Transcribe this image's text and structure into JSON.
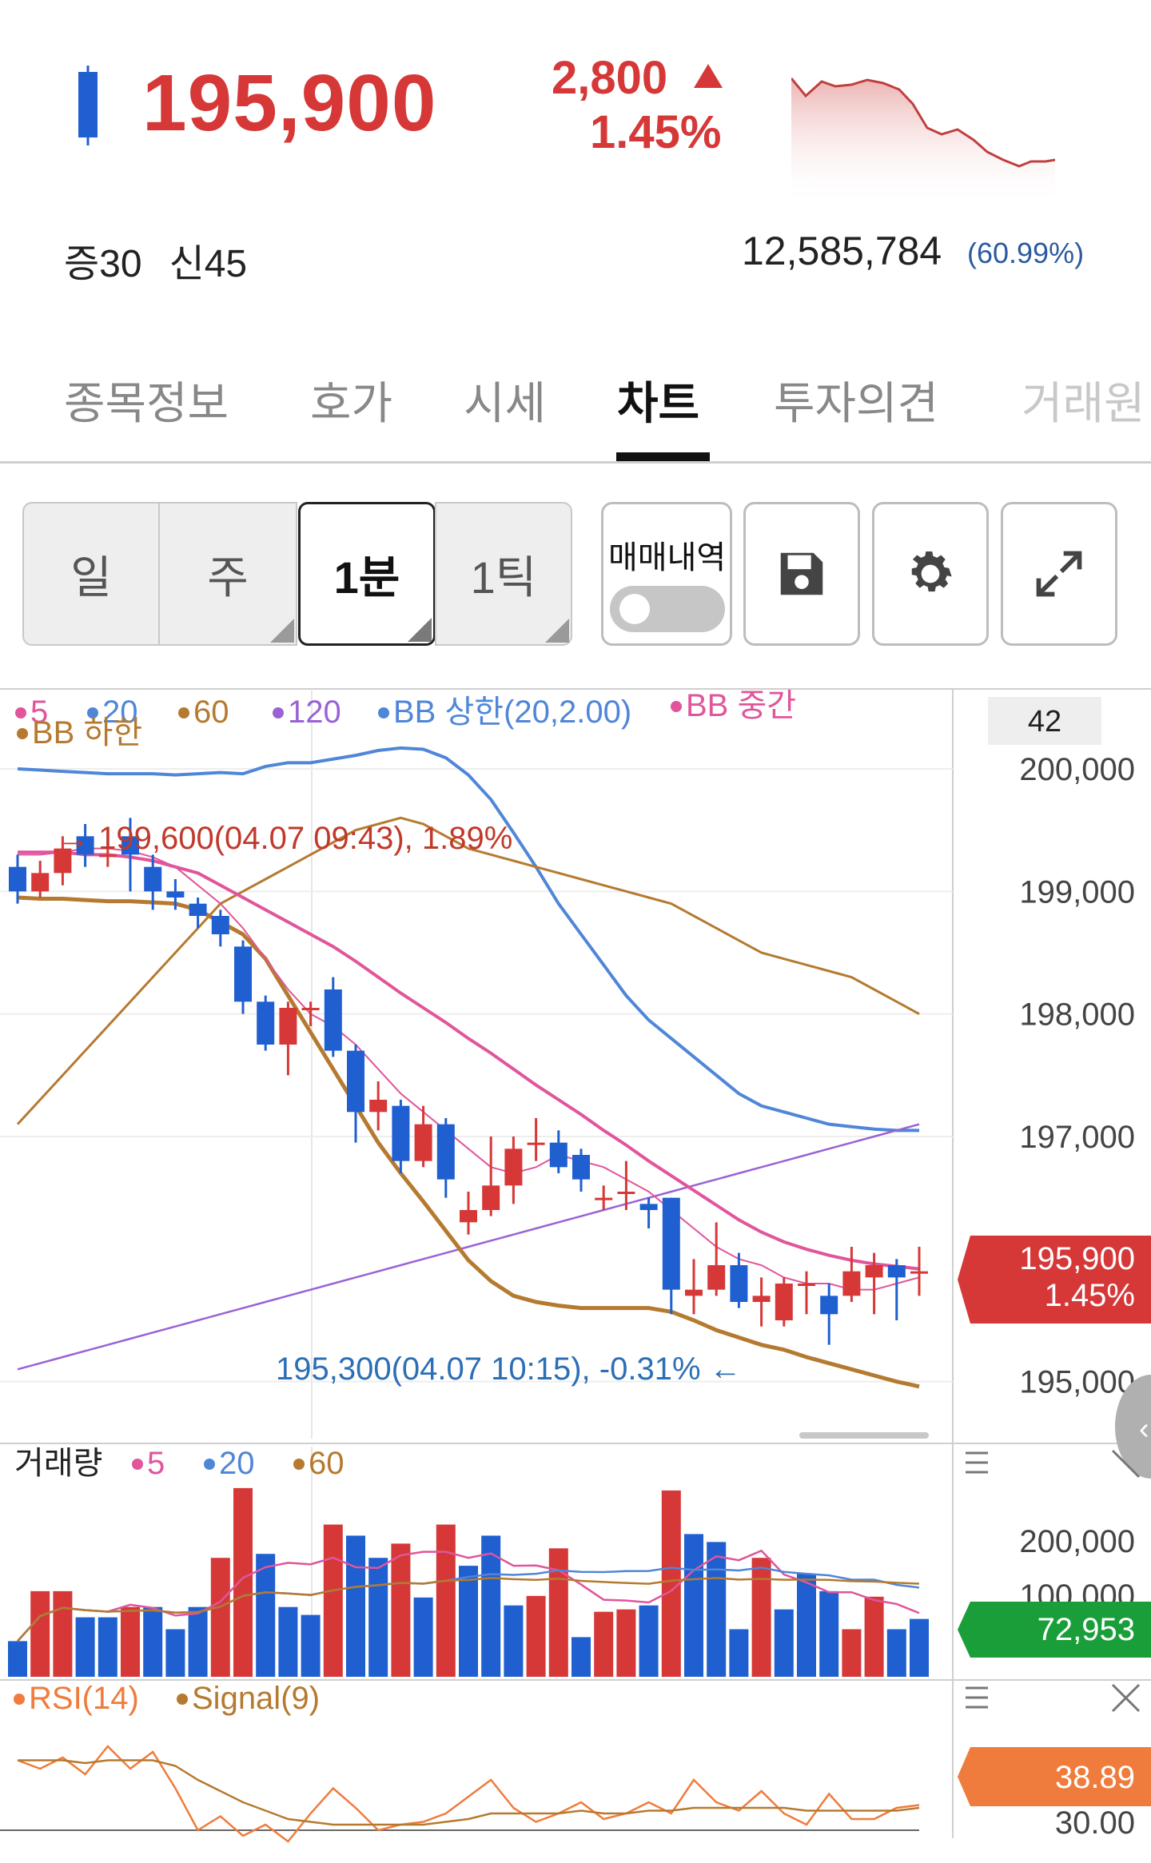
{
  "header": {
    "price": "195,900",
    "change_abs": "2,800",
    "change_pct": "1.45%",
    "badge_margin": "증30",
    "badge_credit": "신45",
    "volume": "12,585,784",
    "volume_ratio": "(60.99%)"
  },
  "colors": {
    "up": "#d63838",
    "down": "#1f5fd0",
    "accent_green": "#1a9e3a",
    "rsi_orange": "#ef7c3c"
  },
  "tabs": [
    {
      "label": "종목정보"
    },
    {
      "label": "호가"
    },
    {
      "label": "시세"
    },
    {
      "label": "차트"
    },
    {
      "label": "투자의견"
    },
    {
      "label": "거래원"
    }
  ],
  "active_tab": "차트",
  "period_buttons": [
    {
      "label": "일"
    },
    {
      "label": "주"
    },
    {
      "label": "1분"
    },
    {
      "label": "1틱"
    }
  ],
  "selected_period": "1분",
  "trade_history": {
    "label": "매매내역",
    "enabled": false
  },
  "tool_icons": [
    "save-icon",
    "gear-icon",
    "expand-icon"
  ],
  "price_chart": {
    "legend": [
      {
        "label": "5",
        "color": "#e0559b"
      },
      {
        "label": "20",
        "color": "#4f86d8"
      },
      {
        "label": "60",
        "color": "#b57a30"
      },
      {
        "label": "120",
        "color": "#9a62d6"
      },
      {
        "label": "BB 상한(20,2.00)",
        "color": "#4f86d8"
      },
      {
        "label": "BB 중간",
        "color": "#e0559b"
      },
      {
        "label": "BB 하한",
        "color": "#b57a30"
      }
    ],
    "zoom_label": "42",
    "y_ticks": [
      "200,000",
      "199,000",
      "198,000",
      "197,000",
      "195,000"
    ],
    "high_annotation": "→ 199,600(04.07 09:43), 1.89%",
    "low_annotation": "195,300(04.07 10:15), -0.31% ←",
    "current_price_tag": "195,900",
    "current_pct_tag": "1.45%"
  },
  "volume_chart": {
    "title": "거래량",
    "legend": [
      {
        "label": "5",
        "color": "#e0559b"
      },
      {
        "label": "20",
        "color": "#4f86d8"
      },
      {
        "label": "60",
        "color": "#b57a30"
      }
    ],
    "y_ticks": [
      "200,000",
      "100,000"
    ],
    "current_tag": "72,953"
  },
  "rsi_chart": {
    "legend": [
      {
        "label": "RSI(14)",
        "color": "#ef7c3c"
      },
      {
        "label": "Signal(9)",
        "color": "#b57a30"
      }
    ],
    "current_tag": "38.89",
    "y_ticks": [
      "30.00"
    ]
  },
  "chart_data": [
    {
      "type": "candlestick",
      "ylim": [
        194600,
        200600
      ],
      "candles": [
        {
          "o": 199000,
          "c": 199200,
          "h": 199300,
          "l": 198900,
          "up": false
        },
        {
          "o": 199000,
          "c": 199150,
          "h": 199250,
          "l": 198950,
          "up": true
        },
        {
          "o": 199150,
          "c": 199350,
          "h": 199450,
          "l": 199050,
          "up": true
        },
        {
          "o": 199450,
          "c": 199300,
          "h": 199550,
          "l": 199200,
          "up": false
        },
        {
          "o": 199300,
          "c": 199300,
          "h": 199500,
          "l": 199200,
          "up": true
        },
        {
          "o": 199450,
          "c": 199300,
          "h": 199600,
          "l": 199000,
          "up": false
        },
        {
          "o": 199200,
          "c": 199000,
          "h": 199300,
          "l": 198850,
          "up": false
        },
        {
          "o": 199000,
          "c": 198950,
          "h": 199100,
          "l": 198850,
          "up": false
        },
        {
          "o": 198900,
          "c": 198800,
          "h": 198950,
          "l": 198700,
          "up": false
        },
        {
          "o": 198800,
          "c": 198650,
          "h": 198850,
          "l": 198550,
          "up": false
        },
        {
          "o": 198550,
          "c": 198100,
          "h": 198600,
          "l": 198000,
          "up": false
        },
        {
          "o": 198100,
          "c": 197750,
          "h": 198150,
          "l": 197700,
          "up": false
        },
        {
          "o": 197750,
          "c": 198050,
          "h": 198100,
          "l": 197500,
          "up": true
        },
        {
          "o": 198050,
          "c": 198050,
          "h": 198100,
          "l": 197900,
          "up": true
        },
        {
          "o": 198200,
          "c": 197700,
          "h": 198300,
          "l": 197650,
          "up": false
        },
        {
          "o": 197700,
          "c": 197200,
          "h": 197750,
          "l": 196950,
          "up": false
        },
        {
          "o": 197200,
          "c": 197300,
          "h": 197450,
          "l": 197050,
          "up": true
        },
        {
          "o": 197250,
          "c": 196800,
          "h": 197300,
          "l": 196700,
          "up": false
        },
        {
          "o": 196800,
          "c": 197100,
          "h": 197250,
          "l": 196750,
          "up": true
        },
        {
          "o": 197100,
          "c": 196650,
          "h": 197150,
          "l": 196500,
          "up": false
        },
        {
          "o": 196300,
          "c": 196400,
          "h": 196550,
          "l": 196200,
          "up": true
        },
        {
          "o": 196400,
          "c": 196600,
          "h": 197000,
          "l": 196350,
          "up": true
        },
        {
          "o": 196600,
          "c": 196900,
          "h": 197000,
          "l": 196450,
          "up": true
        },
        {
          "o": 196950,
          "c": 196950,
          "h": 197150,
          "l": 196800,
          "up": true
        },
        {
          "o": 196950,
          "c": 196750,
          "h": 197050,
          "l": 196700,
          "up": false
        },
        {
          "o": 196850,
          "c": 196650,
          "h": 196900,
          "l": 196550,
          "up": false
        },
        {
          "o": 196500,
          "c": 196500,
          "h": 196600,
          "l": 196400,
          "up": true
        },
        {
          "o": 196550,
          "c": 196550,
          "h": 196800,
          "l": 196400,
          "up": true
        },
        {
          "o": 196450,
          "c": 196400,
          "h": 196500,
          "l": 196250,
          "up": false
        },
        {
          "o": 196500,
          "c": 195750,
          "h": 196500,
          "l": 195550,
          "up": false
        },
        {
          "o": 195700,
          "c": 195750,
          "h": 196000,
          "l": 195550,
          "up": true
        },
        {
          "o": 195750,
          "c": 195950,
          "h": 196300,
          "l": 195700,
          "up": true
        },
        {
          "o": 195950,
          "c": 195650,
          "h": 196050,
          "l": 195600,
          "up": false
        },
        {
          "o": 195650,
          "c": 195700,
          "h": 195850,
          "l": 195450,
          "up": true
        },
        {
          "o": 195500,
          "c": 195800,
          "h": 195850,
          "l": 195450,
          "up": true
        },
        {
          "o": 195800,
          "c": 195800,
          "h": 195900,
          "l": 195550,
          "up": true
        },
        {
          "o": 195700,
          "c": 195550,
          "h": 195800,
          "l": 195300,
          "up": false
        },
        {
          "o": 195700,
          "c": 195900,
          "h": 196100,
          "l": 195650,
          "up": true
        },
        {
          "o": 195850,
          "c": 195950,
          "h": 196050,
          "l": 195550,
          "up": true
        },
        {
          "o": 195950,
          "c": 195850,
          "h": 196000,
          "l": 195500,
          "up": false
        },
        {
          "o": 195900,
          "c": 195900,
          "h": 196100,
          "l": 195700,
          "up": true
        }
      ],
      "lines": {
        "ma5": [
          199300,
          199300,
          199320,
          199350,
          199350,
          199330,
          199280,
          199200,
          199050,
          198900,
          198700,
          198450,
          198200,
          198000,
          197900,
          197750,
          197550,
          197350,
          197200,
          197050,
          196900,
          196750,
          196700,
          196750,
          196850,
          196800,
          196750,
          196650,
          196550,
          196400,
          196250,
          196100,
          196000,
          195950,
          195850,
          195800,
          195800,
          195750,
          195750,
          195800,
          195850
        ],
        "bb_upper": [
          200000,
          199990,
          199980,
          199970,
          199960,
          199960,
          199960,
          199950,
          199960,
          199970,
          199960,
          200020,
          200050,
          200050,
          200080,
          200110,
          200150,
          200170,
          200160,
          200090,
          199950,
          199750,
          199480,
          199200,
          198900,
          198650,
          198400,
          198150,
          197950,
          197800,
          197650,
          197500,
          197350,
          197250,
          197200,
          197150,
          197100,
          197080,
          197060,
          197050,
          197050
        ],
        "bb_mid": [
          199320,
          199320,
          199320,
          199300,
          199300,
          199280,
          199250,
          199200,
          199150,
          199050,
          198950,
          198850,
          198750,
          198650,
          198550,
          198430,
          198300,
          198170,
          198050,
          197930,
          197800,
          197680,
          197550,
          197420,
          197300,
          197180,
          197050,
          196930,
          196800,
          196680,
          196560,
          196440,
          196320,
          196220,
          196140,
          196080,
          196030,
          195990,
          195960,
          195940,
          195920
        ],
        "bb_lower": [
          198950,
          198940,
          198940,
          198930,
          198920,
          198920,
          198910,
          198900,
          198850,
          198750,
          198650,
          198450,
          198150,
          197850,
          197550,
          197250,
          196950,
          196700,
          196470,
          196230,
          195990,
          195820,
          195700,
          195650,
          195620,
          195600,
          195600,
          195600,
          195600,
          195570,
          195500,
          195420,
          195360,
          195300,
          195260,
          195200,
          195150,
          195100,
          195050,
          195000,
          194960
        ],
        "ma60": [
          197100,
          197300,
          197500,
          197700,
          197900,
          198100,
          198300,
          198500,
          198700,
          198900,
          199000,
          199100,
          199200,
          199300,
          199400,
          199500,
          199550,
          199600,
          199550,
          199450,
          199350,
          199300,
          199250,
          199200,
          199150,
          199100,
          199050,
          199000,
          198950,
          198900,
          198800,
          198700,
          198600,
          198500,
          198450,
          198400,
          198350,
          198300,
          198200,
          198100,
          198000
        ],
        "ma120": [
          195100,
          195150,
          195200,
          195250,
          195300,
          195350,
          195400,
          195450,
          195500,
          195550,
          195600,
          195650,
          195700,
          195750,
          195800,
          195850,
          195900,
          195950,
          196000,
          196050,
          196100,
          196150,
          196200,
          196250,
          196300,
          196350,
          196400,
          196450,
          196500,
          196550,
          196600,
          196650,
          196700,
          196750,
          196800,
          196850,
          196900,
          196950,
          197000,
          197050,
          197100
        ]
      }
    },
    {
      "type": "bar",
      "title": "거래량",
      "ylim": [
        0,
        250000
      ],
      "values": [
        45000,
        108000,
        108000,
        75000,
        75000,
        88000,
        88000,
        60000,
        88000,
        150000,
        238000,
        155000,
        88000,
        78000,
        192000,
        178000,
        150000,
        168000,
        100000,
        192000,
        140000,
        178000,
        90000,
        102000,
        162000,
        50000,
        82000,
        85000,
        90000,
        235000,
        180000,
        170000,
        60000,
        150000,
        85000,
        130000,
        108000,
        60000,
        101000,
        60000,
        72953
      ],
      "up": [
        false,
        true,
        true,
        false,
        false,
        true,
        false,
        false,
        false,
        true,
        true,
        false,
        false,
        false,
        true,
        false,
        false,
        true,
        false,
        true,
        false,
        false,
        false,
        true,
        true,
        false,
        true,
        true,
        false,
        true,
        false,
        false,
        false,
        true,
        false,
        false,
        false,
        true,
        true,
        false,
        false
      ]
    },
    {
      "type": "line",
      "title": "RSI(14)",
      "ylim": [
        30,
        70
      ],
      "series": [
        {
          "name": "RSI(14)",
          "values": [
            55,
            52,
            56,
            50,
            60,
            52,
            58,
            45,
            30,
            35,
            28,
            32,
            26,
            36,
            45,
            38,
            30,
            32,
            33,
            36,
            42,
            48,
            38,
            33,
            36,
            40,
            34,
            36,
            40,
            36,
            48,
            40,
            37,
            44,
            36,
            32,
            43,
            34,
            34,
            38,
            39
          ]
        },
        {
          "name": "Signal(9)",
          "values": [
            55,
            55,
            55,
            54,
            55,
            55,
            55,
            53,
            48,
            44,
            40,
            37,
            34,
            33,
            32,
            32,
            32,
            32,
            32,
            33,
            34,
            36,
            36,
            36,
            36,
            37,
            36,
            36,
            37,
            37,
            38,
            38,
            38,
            38,
            38,
            37,
            37,
            37,
            37,
            37,
            38
          ]
        }
      ]
    }
  ]
}
